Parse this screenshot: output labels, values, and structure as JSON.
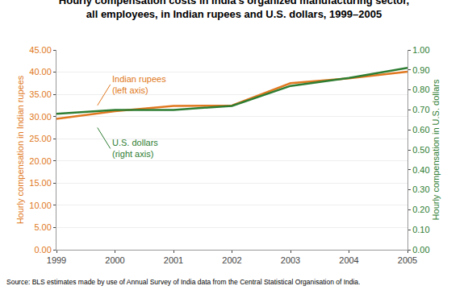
{
  "chart_data": {
    "type": "line",
    "title": "Hourly compensation costs in India's organized manufacturing sector,\nall employees, in Indian rupees and U.S. dollars, 1999–2005",
    "x": [
      1999,
      2000,
      2001,
      2002,
      2003,
      2004,
      2005
    ],
    "xlim": [
      1999,
      2005
    ],
    "xticks": [
      1999,
      2000,
      2001,
      2002,
      2003,
      2004,
      2005
    ],
    "ylabel": "Hourly compensation in Indian rupees",
    "y2label": "Hourly compensation in U.S. dollars",
    "ylim": [
      0,
      45
    ],
    "yticks": [
      {
        "value": 0.0,
        "label": "0.00"
      },
      {
        "value": 5.0,
        "label": "5.00"
      },
      {
        "value": 10.0,
        "label": "10.00"
      },
      {
        "value": 15.0,
        "label": "15.00"
      },
      {
        "value": 20.0,
        "label": "20.00"
      },
      {
        "value": 25.0,
        "label": "25.00"
      },
      {
        "value": 30.0,
        "label": "30.00"
      },
      {
        "value": 35.0,
        "label": "35.00"
      },
      {
        "value": 40.0,
        "label": "40.00"
      },
      {
        "value": 45.0,
        "label": "45.00"
      }
    ],
    "y2lim": [
      0,
      1.0
    ],
    "y2ticks": [
      {
        "value": 0.0,
        "label": "0.00"
      },
      {
        "value": 0.1,
        "label": "0.10"
      },
      {
        "value": 0.2,
        "label": "0.20"
      },
      {
        "value": 0.3,
        "label": "0.30"
      },
      {
        "value": 0.4,
        "label": "0.40"
      },
      {
        "value": 0.5,
        "label": "0.50"
      },
      {
        "value": 0.6,
        "label": "0.60"
      },
      {
        "value": 0.7,
        "label": "0.70"
      },
      {
        "value": 0.8,
        "label": "0.80"
      },
      {
        "value": 0.9,
        "label": "0.90"
      },
      {
        "value": 1.0,
        "label": "1.00"
      }
    ],
    "grid": true,
    "series": [
      {
        "color": "#E07820",
        "values": [
          29.5,
          31.2,
          32.4,
          32.5,
          37.5,
          38.6,
          40.1
        ]
      },
      {
        "color": "#2E7D32",
        "axis": "y2",
        "values": [
          0.68,
          0.7,
          0.7,
          0.72,
          0.82,
          0.86,
          0.91
        ]
      }
    ],
    "annotations": [
      "Indian rupees\n(left axis)",
      "U.S. dollars\n(right axis)"
    ],
    "source": "Source: BLS estimates made by use of Annual Survey of India data from the Central Statistical Organisation of India."
  }
}
